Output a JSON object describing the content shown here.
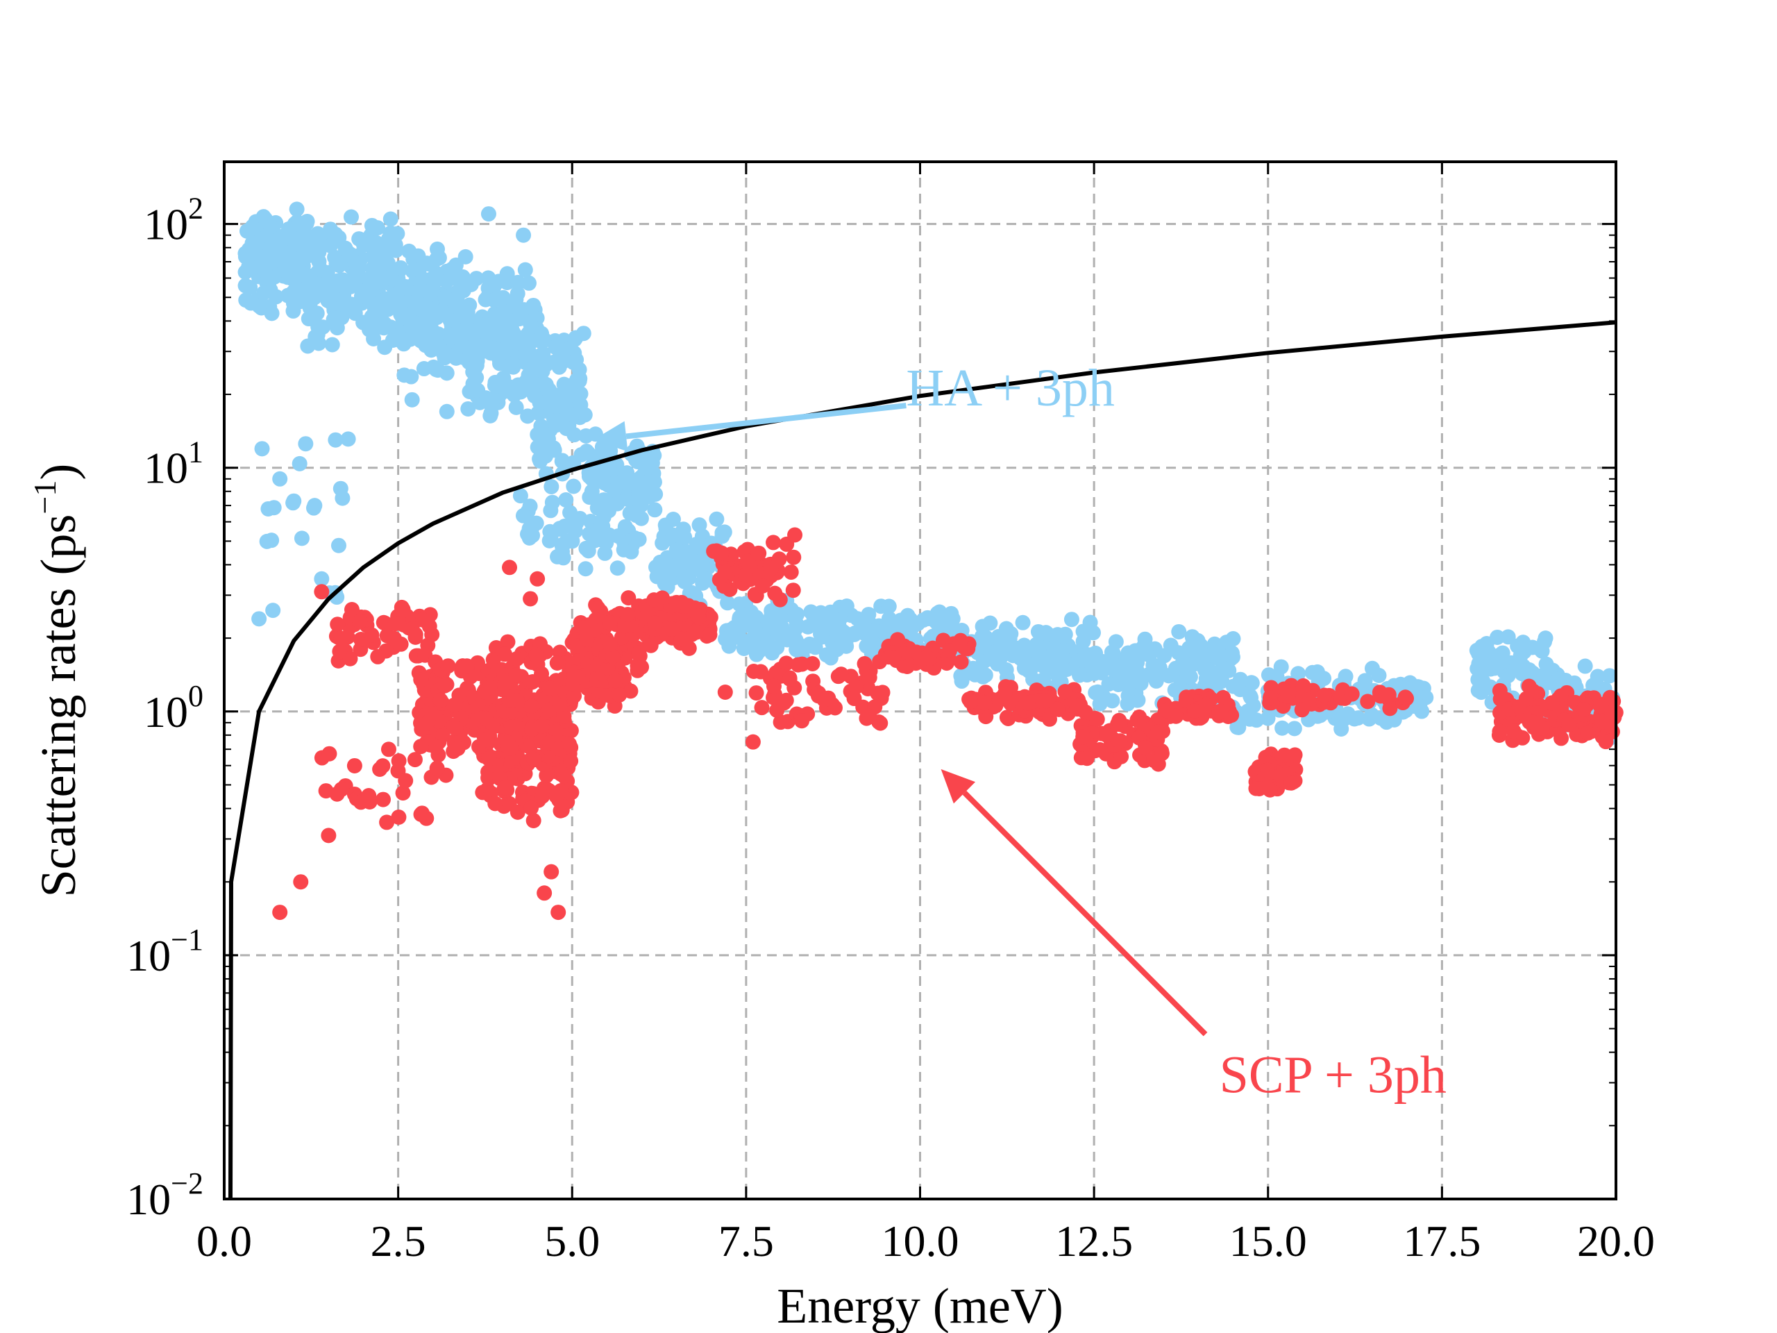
{
  "chart_data": {
    "type": "scatter",
    "xlabel": "Energy (meV)",
    "ylabel": "Scattering rates (ps",
    "ylabel_sup": "−1",
    "ylabel_close": ")",
    "xlim": [
      0,
      20
    ],
    "ylim": [
      0.01,
      180
    ],
    "yscale": "log",
    "grid": true,
    "grid_style": "dashed",
    "x_ticks": [
      0,
      2.5,
      5,
      7.5,
      10,
      12.5,
      15,
      17.5,
      20
    ],
    "x_tick_labels": [
      "0.0",
      "2.5",
      "5.0",
      "7.5",
      "10.0",
      "12.5",
      "15.0",
      "17.5",
      "20.0"
    ],
    "y_ticks": [
      {
        "value": 0.01,
        "base": "10",
        "exp": "−2"
      },
      {
        "value": 0.1,
        "base": "10",
        "exp": "−1"
      },
      {
        "value": 1,
        "base": "10",
        "exp": "0"
      },
      {
        "value": 10,
        "base": "10",
        "exp": "1"
      },
      {
        "value": 100,
        "base": "10",
        "exp": "2"
      }
    ],
    "reference_curve": {
      "color": "#000000",
      "description": "increases roughly linearly with energy through the data below",
      "points": [
        [
          0.09,
          0.01
        ],
        [
          0.1,
          0.2
        ],
        [
          0.5,
          1.0
        ],
        [
          1,
          1.95
        ],
        [
          1.5,
          2.9
        ],
        [
          2,
          3.9
        ],
        [
          2.5,
          4.9
        ],
        [
          3,
          5.9
        ],
        [
          4,
          7.9
        ],
        [
          5,
          9.8
        ],
        [
          6,
          11.8
        ],
        [
          7.5,
          14.8
        ],
        [
          10,
          19.7
        ],
        [
          12.5,
          24.6
        ],
        [
          15,
          29.6
        ],
        [
          17.5,
          34.5
        ],
        [
          20,
          39.5
        ]
      ]
    },
    "series": [
      {
        "name": "HA + 3ph",
        "color": "#8ccff5",
        "clusters": [
          {
            "x": [
              0.3,
              1.2
            ],
            "y": [
              40,
              130
            ],
            "n": 140
          },
          {
            "x": [
              1.2,
              2.5
            ],
            "y": [
              30,
              110
            ],
            "n": 180
          },
          {
            "x": [
              2.5,
              3.5
            ],
            "y": [
              22,
              90
            ],
            "n": 150
          },
          {
            "x": [
              3.5,
              4.5
            ],
            "y": [
              15,
              70
            ],
            "n": 150
          },
          {
            "x": [
              4.5,
              5.2
            ],
            "y": [
              9,
              40
            ],
            "n": 110
          },
          {
            "x": [
              5.2,
              6.2
            ],
            "y": [
              6,
              14
            ],
            "n": 90
          },
          {
            "x": [
              4.2,
              6.0
            ],
            "y": [
              3.5,
              9
            ],
            "n": 70
          },
          {
            "x": [
              6.2,
              7.2
            ],
            "y": [
              2.6,
              6.5
            ],
            "n": 80
          },
          {
            "x": [
              7.2,
              8.5
            ],
            "y": [
              1.6,
              3.0
            ],
            "n": 80
          },
          {
            "x": [
              8.5,
              10.5
            ],
            "y": [
              1.6,
              2.8
            ],
            "n": 120
          },
          {
            "x": [
              10.5,
              12.5
            ],
            "y": [
              1.2,
              2.5
            ],
            "n": 120
          },
          {
            "x": [
              12.5,
              14.5
            ],
            "y": [
              1.0,
              2.2
            ],
            "n": 120
          },
          {
            "x": [
              14.5,
              17.3
            ],
            "y": [
              0.8,
              1.6
            ],
            "n": 130
          },
          {
            "x": [
              18.0,
              19.0
            ],
            "y": [
              1.0,
              2.2
            ],
            "n": 70
          },
          {
            "x": [
              19.0,
              20.0
            ],
            "y": [
              0.75,
              1.6
            ],
            "n": 60
          },
          {
            "x": [
              0.5,
              1.8
            ],
            "y": [
              2.3,
              20
            ],
            "n": 16
          }
        ],
        "points": [
          [
            0.8,
            9
          ],
          [
            1.0,
            7.3
          ],
          [
            1.3,
            7.0
          ],
          [
            1.6,
            13
          ],
          [
            1.7,
            7.5
          ],
          [
            0.5,
            2.4
          ],
          [
            0.7,
            2.6
          ],
          [
            1.4,
            3.5
          ],
          [
            3.8,
            110
          ],
          [
            4.3,
            90
          ],
          [
            2.7,
            19
          ],
          [
            3.2,
            17
          ],
          [
            6.9,
            4.3
          ],
          [
            7.6,
            2.0
          ],
          [
            8.0,
            2.4
          ]
        ]
      },
      {
        "name": "SCP + 3ph",
        "color": "#f9454c",
        "clusters": [
          {
            "x": [
              1.6,
              3.0
            ],
            "y": [
              1.5,
              3.0
            ],
            "n": 50
          },
          {
            "x": [
              2.8,
              3.8
            ],
            "y": [
              0.6,
              1.8
            ],
            "n": 120
          },
          {
            "x": [
              3.7,
              5.0
            ],
            "y": [
              0.35,
              2.0
            ],
            "n": 320
          },
          {
            "x": [
              5.0,
              6.0
            ],
            "y": [
              1.0,
              3.0
            ],
            "n": 150
          },
          {
            "x": [
              6.0,
              7.0
            ],
            "y": [
              1.8,
              3.0
            ],
            "n": 110
          },
          {
            "x": [
              7.0,
              8.2
            ],
            "y": [
              2.6,
              5.2
            ],
            "n": 60
          },
          {
            "x": [
              1.4,
              3.5
            ],
            "y": [
              0.3,
              0.8
            ],
            "n": 30
          },
          {
            "x": [
              7.5,
              9.5
            ],
            "y": [
              0.8,
              1.7
            ],
            "n": 60
          },
          {
            "x": [
              9.5,
              10.7
            ],
            "y": [
              1.5,
              2.0
            ],
            "n": 50
          },
          {
            "x": [
              10.7,
              12.3
            ],
            "y": [
              0.9,
              1.3
            ],
            "n": 80
          },
          {
            "x": [
              12.3,
              13.5
            ],
            "y": [
              0.6,
              1.0
            ],
            "n": 70
          },
          {
            "x": [
              13.5,
              14.5
            ],
            "y": [
              0.9,
              1.2
            ],
            "n": 50
          },
          {
            "x": [
              14.8,
              15.4
            ],
            "y": [
              0.45,
              0.7
            ],
            "n": 45
          },
          {
            "x": [
              15.0,
              17.0
            ],
            "y": [
              1.0,
              1.3
            ],
            "n": 50
          },
          {
            "x": [
              18.3,
              20.0
            ],
            "y": [
              0.7,
              1.3
            ],
            "n": 100
          }
        ],
        "points": [
          [
            0.8,
            0.15
          ],
          [
            1.1,
            0.2
          ],
          [
            1.5,
            0.31
          ],
          [
            4.8,
            0.15
          ],
          [
            4.7,
            0.22
          ],
          [
            4.6,
            0.18
          ],
          [
            4.1,
            3.9
          ],
          [
            4.5,
            3.5
          ],
          [
            4.4,
            2.9
          ],
          [
            8.2,
            5.3
          ],
          [
            6.5,
            2.8
          ],
          [
            5.8,
            2.5
          ],
          [
            1.4,
            3.1
          ],
          [
            7.6,
            0.75
          ],
          [
            7.2,
            1.2
          ]
        ]
      }
    ],
    "annotations": [
      {
        "text": "HA + 3ph",
        "color": "#8ccff5",
        "text_pos": [
          9.7,
          18
        ],
        "arrow_to": [
          5.3,
          13
        ]
      },
      {
        "text": "SCP + 3ph",
        "color": "#f9454c",
        "text_pos": [
          14.3,
          0.032
        ],
        "arrow_to": [
          10.3,
          0.58
        ]
      }
    ]
  }
}
